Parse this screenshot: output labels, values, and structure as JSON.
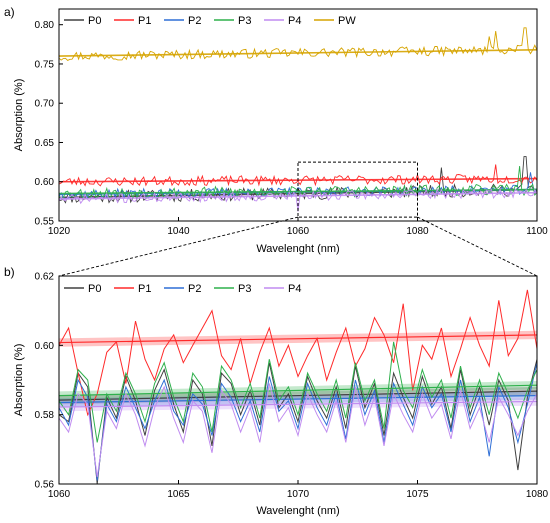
{
  "chart_data": [
    {
      "panel": "a)",
      "type": "line",
      "xlabel": "Wavelenght (nm)",
      "ylabel": "Absorption (%)",
      "xlim": [
        1020,
        1100
      ],
      "ylim": [
        0.55,
        0.82
      ],
      "xticks": [
        "1020",
        "1040",
        "1060",
        "1080",
        "1100"
      ],
      "yticks": [
        "0.55",
        "0.60",
        "0.65",
        "0.70",
        "0.75",
        "0.80"
      ],
      "grid": false,
      "legend_position": "top, horizontal",
      "zoom_box_x": [
        1060,
        1080
      ],
      "zoom_box_y": [
        0.555,
        0.625
      ],
      "series": [
        {
          "name": "P0",
          "color": "#404040",
          "base": [
            0.58,
            0.59
          ],
          "amp": 0.008,
          "seed": 11,
          "spikes": [
            [
              1098,
              0.632
            ],
            [
              1084,
              0.618
            ]
          ]
        },
        {
          "name": "P1",
          "color": "#ff2a2a",
          "base": [
            0.6,
            0.604
          ],
          "amp": 0.006,
          "seed": 23,
          "spikes": [
            [
              1093,
              0.622
            ]
          ]
        },
        {
          "name": "P2",
          "color": "#2f6fd6",
          "base": [
            0.584,
            0.59
          ],
          "amp": 0.006,
          "seed": 37,
          "spikes": [
            [
              1099,
              0.612
            ]
          ]
        },
        {
          "name": "P3",
          "color": "#2fb04c",
          "base": [
            0.585,
            0.59
          ],
          "amp": 0.007,
          "seed": 53,
          "spikes": [
            [
              1097,
              0.62
            ]
          ]
        },
        {
          "name": "P4",
          "color": "#c08cf0",
          "base": [
            0.578,
            0.586
          ],
          "amp": 0.006,
          "seed": 71,
          "spikes": [
            [
              1060,
              0.562
            ]
          ]
        },
        {
          "name": "PW",
          "color": "#d6a400",
          "base": [
            0.76,
            0.768
          ],
          "amp": 0.006,
          "seed": 97,
          "spikes": [
            [
              1098,
              0.796
            ],
            [
              1093,
              0.792
            ],
            [
              1092,
              0.785
            ]
          ]
        }
      ]
    },
    {
      "panel": "b)",
      "type": "line",
      "xlabel": "Wavelenght (nm)",
      "ylabel": "Absorption (%)",
      "xlim": [
        1060,
        1080
      ],
      "ylim": [
        0.56,
        0.62
      ],
      "xticks": [
        "1060",
        "1065",
        "1070",
        "1075",
        "1080"
      ],
      "yticks": [
        "0.56",
        "0.58",
        "0.60",
        "0.62"
      ],
      "grid": false,
      "legend_position": "top, horizontal",
      "x": [
        1060.0,
        1060.4,
        1060.8,
        1061.2,
        1061.6,
        1062.0,
        1062.4,
        1062.8,
        1063.2,
        1063.6,
        1064.0,
        1064.4,
        1064.8,
        1065.2,
        1065.6,
        1066.0,
        1066.4,
        1066.8,
        1067.2,
        1067.6,
        1068.0,
        1068.4,
        1068.8,
        1069.2,
        1069.6,
        1070.0,
        1070.4,
        1070.8,
        1071.2,
        1071.6,
        1072.0,
        1072.4,
        1072.8,
        1073.2,
        1073.6,
        1074.0,
        1074.4,
        1074.8,
        1075.2,
        1075.6,
        1076.0,
        1076.4,
        1076.8,
        1077.2,
        1077.6,
        1078.0,
        1078.4,
        1078.8,
        1079.2,
        1079.6,
        1080.0
      ],
      "series": [
        {
          "name": "P0",
          "color": "#404040",
          "trend": [
            0.5842,
            0.5868
          ],
          "values": [
            0.58,
            0.578,
            0.592,
            0.588,
            0.56,
            0.585,
            0.579,
            0.591,
            0.584,
            0.574,
            0.587,
            0.593,
            0.583,
            0.575,
            0.59,
            0.586,
            0.571,
            0.592,
            0.589,
            0.58,
            0.587,
            0.577,
            0.595,
            0.582,
            0.586,
            0.578,
            0.591,
            0.584,
            0.579,
            0.588,
            0.576,
            0.594,
            0.582,
            0.589,
            0.574,
            0.592,
            0.585,
            0.579,
            0.591,
            0.583,
            0.588,
            0.576,
            0.593,
            0.58,
            0.588,
            0.577,
            0.59,
            0.584,
            0.564,
            0.585,
            0.596
          ]
        },
        {
          "name": "P1",
          "color": "#ff2a2a",
          "trend": [
            0.6008,
            0.603
          ],
          "values": [
            0.6,
            0.605,
            0.592,
            0.58,
            0.586,
            0.598,
            0.601,
            0.589,
            0.607,
            0.596,
            0.59,
            0.599,
            0.603,
            0.595,
            0.6,
            0.605,
            0.61,
            0.597,
            0.593,
            0.602,
            0.589,
            0.598,
            0.605,
            0.594,
            0.6,
            0.591,
            0.597,
            0.602,
            0.59,
            0.598,
            0.605,
            0.594,
            0.599,
            0.608,
            0.603,
            0.595,
            0.612,
            0.587,
            0.6,
            0.596,
            0.605,
            0.591,
            0.599,
            0.608,
            0.6,
            0.594,
            0.613,
            0.597,
            0.602,
            0.616,
            0.599
          ]
        },
        {
          "name": "P2",
          "color": "#2f6fd6",
          "trend": [
            0.5835,
            0.5855
          ],
          "values": [
            0.582,
            0.577,
            0.59,
            0.585,
            0.561,
            0.583,
            0.578,
            0.588,
            0.582,
            0.576,
            0.584,
            0.59,
            0.581,
            0.577,
            0.586,
            0.583,
            0.574,
            0.589,
            0.585,
            0.578,
            0.584,
            0.575,
            0.591,
            0.581,
            0.584,
            0.576,
            0.589,
            0.582,
            0.577,
            0.586,
            0.573,
            0.59,
            0.58,
            0.587,
            0.572,
            0.589,
            0.583,
            0.577,
            0.588,
            0.582,
            0.586,
            0.575,
            0.59,
            0.578,
            0.585,
            0.568,
            0.588,
            0.582,
            0.572,
            0.583,
            0.595
          ]
        },
        {
          "name": "P3",
          "color": "#2fb04c",
          "trend": [
            0.5855,
            0.5885
          ],
          "values": [
            0.584,
            0.58,
            0.593,
            0.59,
            0.572,
            0.586,
            0.581,
            0.592,
            0.586,
            0.578,
            0.589,
            0.595,
            0.585,
            0.578,
            0.592,
            0.588,
            0.575,
            0.594,
            0.59,
            0.582,
            0.589,
            0.579,
            0.596,
            0.584,
            0.588,
            0.58,
            0.592,
            0.586,
            0.581,
            0.59,
            0.579,
            0.595,
            0.584,
            0.59,
            0.576,
            0.601,
            0.587,
            0.582,
            0.593,
            0.585,
            0.59,
            0.579,
            0.594,
            0.582,
            0.59,
            0.58,
            0.592,
            0.586,
            0.579,
            0.587,
            0.593
          ]
        },
        {
          "name": "P4",
          "color": "#c08cf0",
          "trend": [
            0.5822,
            0.5838
          ],
          "values": [
            0.579,
            0.575,
            0.586,
            0.583,
            0.562,
            0.581,
            0.576,
            0.586,
            0.58,
            0.571,
            0.582,
            0.588,
            0.579,
            0.572,
            0.584,
            0.581,
            0.569,
            0.587,
            0.583,
            0.575,
            0.582,
            0.572,
            0.589,
            0.578,
            0.582,
            0.574,
            0.586,
            0.58,
            0.575,
            0.584,
            0.572,
            0.588,
            0.577,
            0.585,
            0.571,
            0.586,
            0.58,
            0.575,
            0.586,
            0.579,
            0.583,
            0.573,
            0.587,
            0.576,
            0.582,
            0.572,
            0.585,
            0.58,
            0.574,
            0.581,
            0.586
          ]
        }
      ]
    }
  ]
}
